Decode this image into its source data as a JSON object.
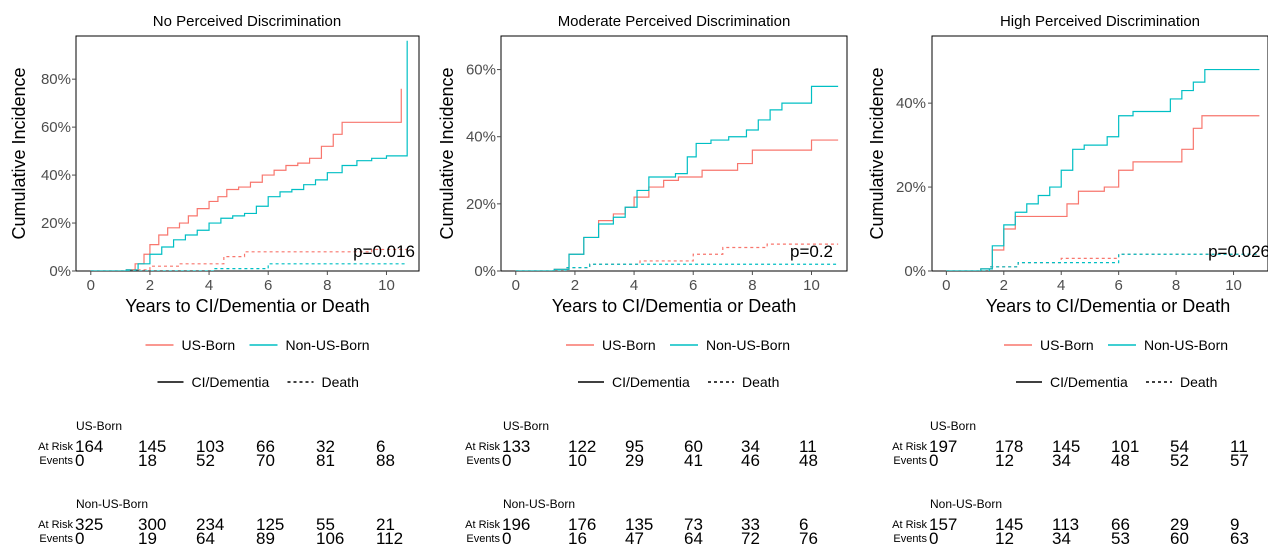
{
  "legend": {
    "group": [
      "US-Born",
      "Non-US-Born"
    ],
    "outcome": [
      "CI/Dementia",
      "Death"
    ]
  },
  "colors": {
    "us": "#F8766D",
    "nonus": "#00BFC4",
    "ink": "#000000",
    "tick": "#4d4d4d"
  },
  "risk_table": {
    "row_labels": [
      "At Risk",
      "Events"
    ],
    "groups": [
      "US-Born",
      "Non-US-Born"
    ]
  },
  "chart_data": [
    {
      "type": "line",
      "title": "No Perceived Discrimination",
      "xlabel": "Years to CI/Dementia or Death",
      "ylabel": "Cumulative Incidence",
      "xticks": [
        0,
        2,
        4,
        6,
        8,
        10
      ],
      "yticks": [
        0,
        20,
        40,
        60,
        80
      ],
      "ytick_labels": [
        "0%",
        "20%",
        "40%",
        "60%",
        "80%"
      ],
      "xlim": [
        -0.5,
        11.1
      ],
      "ylim": [
        0,
        98
      ],
      "p_value": "p=0.016",
      "grid": false,
      "series": [
        {
          "name": "US-Born",
          "outcome": "CI/Dementia",
          "linetype": "solid",
          "x": [
            0,
            1.2,
            1.5,
            1.8,
            2.0,
            2.3,
            2.6,
            3.0,
            3.3,
            3.6,
            4.0,
            4.3,
            4.6,
            5.0,
            5.4,
            5.8,
            6.2,
            6.6,
            7.0,
            7.4,
            7.8,
            8.2,
            8.5,
            9.0,
            9.8,
            10.5,
            10.5
          ],
          "y": [
            0,
            0.5,
            3,
            7,
            11,
            15,
            18,
            20,
            23,
            26,
            29,
            31,
            34,
            35,
            37,
            40,
            42,
            44,
            45,
            47,
            52,
            57,
            62,
            62,
            62,
            62,
            76
          ]
        },
        {
          "name": "Non-US-Born",
          "outcome": "CI/Dementia",
          "linetype": "solid",
          "x": [
            0,
            1.2,
            1.6,
            2.0,
            2.4,
            2.8,
            3.2,
            3.6,
            4.0,
            4.4,
            4.8,
            5.2,
            5.6,
            6.0,
            6.4,
            6.8,
            7.2,
            7.6,
            8.0,
            8.5,
            9.0,
            9.5,
            10.0,
            10.7,
            10.7
          ],
          "y": [
            0,
            0.5,
            3,
            7,
            10,
            13,
            15,
            17,
            20,
            22,
            23,
            24,
            27,
            31,
            33,
            34,
            36,
            38,
            41,
            44,
            46,
            47,
            48,
            49,
            96
          ]
        },
        {
          "name": "US-Born",
          "outcome": "Death",
          "linetype": "dashed",
          "x": [
            0,
            1.4,
            2.0,
            3.0,
            4.5,
            5.2,
            7.0,
            8.5,
            9.5,
            10.7
          ],
          "y": [
            0,
            0.5,
            2,
            3,
            6,
            8,
            8,
            8,
            9,
            9
          ]
        },
        {
          "name": "Non-US-Born",
          "outcome": "Death",
          "linetype": "dashed",
          "x": [
            0,
            4.2,
            6.0,
            10.7
          ],
          "y": [
            0,
            1,
            3,
            3
          ]
        }
      ]
    },
    {
      "type": "line",
      "title": "Moderate Perceived Discrimination",
      "xlabel": "Years to CI/Dementia or Death",
      "ylabel": "Cumulative Incidence",
      "xticks": [
        0,
        2,
        4,
        6,
        8,
        10
      ],
      "yticks": [
        0,
        20,
        40,
        60
      ],
      "ytick_labels": [
        "0%",
        "20%",
        "40%",
        "60%"
      ],
      "xlim": [
        -0.5,
        11.2
      ],
      "ylim": [
        0,
        70
      ],
      "p_value": "p=0.2",
      "grid": false,
      "series": [
        {
          "name": "US-Born",
          "outcome": "CI/Dementia",
          "linetype": "solid",
          "x": [
            0,
            1.3,
            1.8,
            2.3,
            2.8,
            3.3,
            3.7,
            4.0,
            4.5,
            5.0,
            5.5,
            6.0,
            6.3,
            7.0,
            7.5,
            8.0,
            9.0,
            10.0,
            10.9
          ],
          "y": [
            0,
            0.5,
            5,
            10,
            15,
            17,
            19,
            22,
            25,
            27,
            28,
            28,
            30,
            30,
            32,
            36,
            36,
            39,
            39
          ]
        },
        {
          "name": "Non-US-Born",
          "outcome": "CI/Dementia",
          "linetype": "solid",
          "x": [
            0,
            1.3,
            1.8,
            2.3,
            2.8,
            3.3,
            3.7,
            4.1,
            4.5,
            5.0,
            5.4,
            5.8,
            6.1,
            6.6,
            7.2,
            7.8,
            8.2,
            8.6,
            9.0,
            10.0,
            10.9
          ],
          "y": [
            0,
            0.5,
            5,
            10,
            14,
            16,
            19,
            24,
            28,
            28,
            29,
            34,
            38,
            39,
            40,
            42,
            45,
            48,
            50,
            55,
            55
          ]
        },
        {
          "name": "US-Born",
          "outcome": "Death",
          "linetype": "dashed",
          "x": [
            0,
            1.7,
            2.5,
            4.2,
            6.0,
            7.0,
            8.5,
            10.9
          ],
          "y": [
            0,
            1,
            2,
            3,
            5,
            7,
            8,
            8
          ]
        },
        {
          "name": "Non-US-Born",
          "outcome": "Death",
          "linetype": "dashed",
          "x": [
            0,
            1.7,
            2.5,
            10.9
          ],
          "y": [
            0,
            1,
            2,
            2
          ]
        }
      ]
    },
    {
      "type": "line",
      "title": "High Perceived Discrimination",
      "xlabel": "Years to CI/Dementia or Death",
      "ylabel": "Cumulative Incidence",
      "xticks": [
        0,
        2,
        4,
        6,
        8,
        10
      ],
      "yticks": [
        0,
        20,
        40
      ],
      "ytick_labels": [
        "0%",
        "20%",
        "40%"
      ],
      "xlim": [
        -0.5,
        11.2
      ],
      "ylim": [
        0,
        56
      ],
      "p_value": "p=0.026",
      "grid": false,
      "series": [
        {
          "name": "US-Born",
          "outcome": "CI/Dementia",
          "linetype": "solid",
          "x": [
            0,
            1.2,
            1.6,
            2.0,
            2.4,
            2.8,
            3.2,
            3.7,
            4.2,
            4.6,
            5.0,
            5.5,
            6.0,
            6.5,
            7.0,
            7.8,
            8.2,
            8.6,
            8.9,
            9.5,
            10.9
          ],
          "y": [
            0,
            0.5,
            5,
            10,
            13,
            13,
            13,
            13,
            16,
            19,
            19,
            20,
            24,
            26,
            26,
            26,
            29,
            34,
            37,
            37,
            37
          ]
        },
        {
          "name": "Non-US-Born",
          "outcome": "CI/Dementia",
          "linetype": "solid",
          "x": [
            0,
            1.2,
            1.6,
            2.0,
            2.4,
            2.8,
            3.2,
            3.6,
            4.0,
            4.4,
            4.8,
            5.2,
            5.6,
            6.0,
            6.5,
            7.0,
            7.8,
            8.2,
            8.6,
            9.0,
            10.0,
            10.9
          ],
          "y": [
            0,
            0.5,
            6,
            11,
            14,
            16,
            18,
            20,
            24,
            29,
            30,
            30,
            32,
            37,
            38,
            38,
            41,
            43,
            45,
            48,
            48,
            48
          ]
        },
        {
          "name": "US-Born",
          "outcome": "Death",
          "linetype": "dashed",
          "x": [
            0,
            1.5,
            2.5,
            4.0,
            6.0,
            8.0,
            10.9
          ],
          "y": [
            0,
            1,
            2,
            3,
            4,
            4,
            4
          ]
        },
        {
          "name": "Non-US-Born",
          "outcome": "Death",
          "linetype": "dashed",
          "x": [
            0,
            1.5,
            2.5,
            4.5,
            6.0,
            10.9
          ],
          "y": [
            0,
            1,
            2,
            2,
            4,
            4
          ]
        }
      ],
      "risk": [
        {
          "group": "US-Born",
          "at_risk": [
            197,
            178,
            145,
            101,
            54,
            11
          ],
          "events": [
            0,
            12,
            34,
            48,
            52,
            57
          ]
        },
        {
          "group": "Non-US-Born",
          "at_risk": [
            157,
            145,
            113,
            66,
            29,
            9
          ],
          "events": [
            0,
            12,
            34,
            53,
            60,
            63
          ]
        }
      ]
    }
  ]
}
